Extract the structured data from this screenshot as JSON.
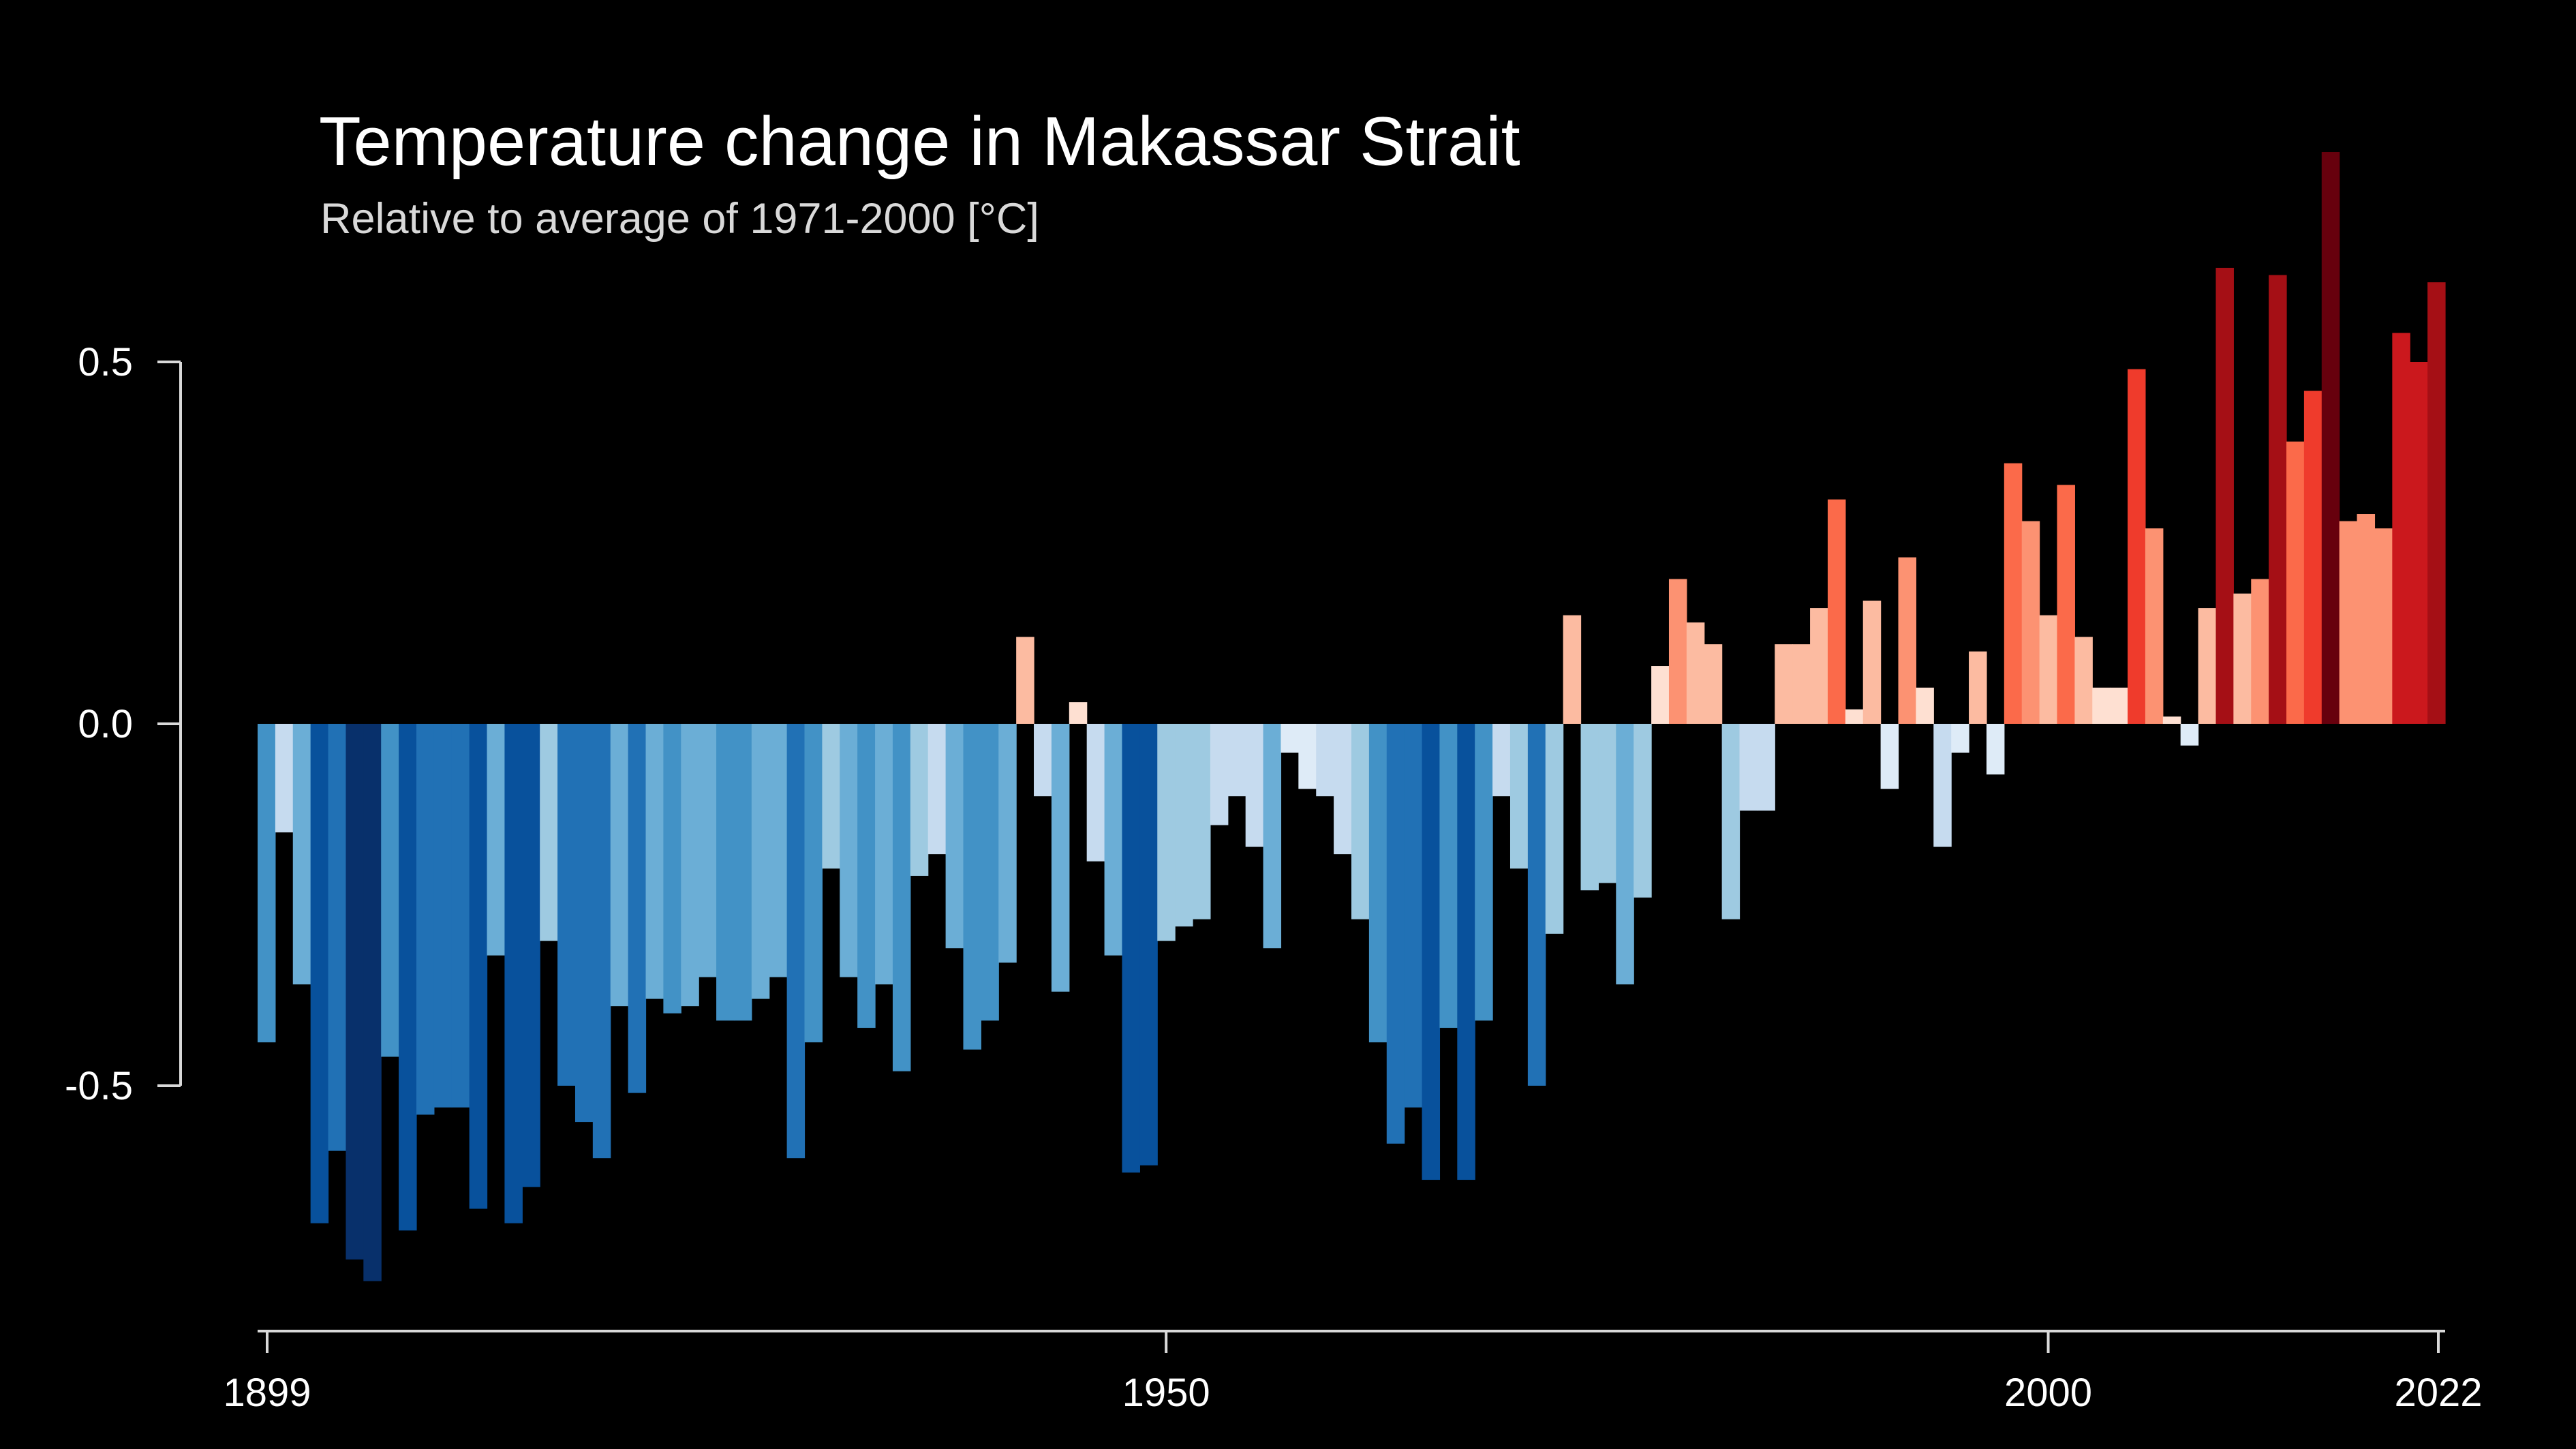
{
  "chart_data": {
    "type": "bar",
    "title": "Temperature change in Makassar Strait",
    "subtitle": "Relative to average of 1971-2000  [°C]",
    "xlabel": "",
    "ylabel": "",
    "grid": false,
    "legend": "none",
    "xlim": [
      1899,
      2022
    ],
    "ylim": [
      -0.85,
      0.75
    ],
    "y_ticks": [
      0.5,
      0.0,
      -0.5
    ],
    "y_tick_labels": [
      "0.5",
      "0.0",
      "-0.5"
    ],
    "x_ticks": [
      1899,
      1950,
      2000,
      2022
    ],
    "x_tick_labels": [
      "1899",
      "1950",
      "2000",
      "2022"
    ],
    "color_scale": {
      "negative": [
        "#deebf7",
        "#c6dbef",
        "#9ecae1",
        "#6baed6",
        "#4292c6",
        "#2171b5",
        "#08519c",
        "#08306b"
      ],
      "positive": [
        "#fee0d2",
        "#fcbba1",
        "#fc9272",
        "#fb6a4a",
        "#ef3b2c",
        "#cb181d",
        "#a50f15",
        "#67000d"
      ]
    },
    "years": [
      1899,
      1900,
      1901,
      1902,
      1903,
      1904,
      1905,
      1906,
      1907,
      1908,
      1909,
      1910,
      1911,
      1912,
      1913,
      1914,
      1915,
      1916,
      1917,
      1918,
      1919,
      1920,
      1921,
      1922,
      1923,
      1924,
      1925,
      1926,
      1927,
      1928,
      1929,
      1930,
      1931,
      1932,
      1933,
      1934,
      1935,
      1936,
      1937,
      1938,
      1939,
      1940,
      1941,
      1942,
      1943,
      1944,
      1945,
      1946,
      1947,
      1948,
      1949,
      1950,
      1951,
      1952,
      1953,
      1954,
      1955,
      1956,
      1957,
      1958,
      1959,
      1960,
      1961,
      1962,
      1963,
      1964,
      1965,
      1966,
      1967,
      1968,
      1969,
      1970,
      1971,
      1972,
      1973,
      1974,
      1975,
      1976,
      1977,
      1978,
      1979,
      1980,
      1981,
      1982,
      1983,
      1984,
      1985,
      1986,
      1987,
      1988,
      1989,
      1990,
      1991,
      1992,
      1993,
      1994,
      1995,
      1996,
      1997,
      1998,
      1999,
      2000,
      2001,
      2002,
      2003,
      2004,
      2005,
      2006,
      2007,
      2008,
      2009,
      2010,
      2011,
      2012,
      2013,
      2014,
      2015,
      2016,
      2017,
      2018,
      2019,
      2020,
      2021,
      2022
    ],
    "values": [
      -0.44,
      -0.15,
      -0.36,
      -0.69,
      -0.59,
      -0.74,
      -0.77,
      -0.46,
      -0.7,
      -0.54,
      -0.53,
      -0.53,
      -0.67,
      -0.32,
      -0.69,
      -0.64,
      -0.3,
      -0.5,
      -0.55,
      -0.6,
      -0.39,
      -0.51,
      -0.38,
      -0.4,
      -0.39,
      -0.35,
      -0.41,
      -0.41,
      -0.38,
      -0.35,
      -0.6,
      -0.44,
      -0.2,
      -0.35,
      -0.42,
      -0.36,
      -0.48,
      -0.21,
      -0.18,
      -0.31,
      -0.45,
      -0.41,
      -0.33,
      0.12,
      -0.1,
      -0.37,
      0.03,
      -0.19,
      -0.32,
      -0.62,
      -0.61,
      -0.3,
      -0.28,
      -0.27,
      -0.14,
      -0.1,
      -0.17,
      -0.31,
      -0.04,
      -0.09,
      -0.1,
      -0.18,
      -0.27,
      -0.44,
      -0.58,
      -0.53,
      -0.63,
      -0.42,
      -0.63,
      -0.41,
      -0.1,
      -0.2,
      -0.5,
      -0.29,
      0.15,
      -0.23,
      -0.22,
      -0.36,
      -0.24,
      0.08,
      0.2,
      0.14,
      0.11,
      -0.27,
      -0.12,
      -0.12,
      0.11,
      0.11,
      0.16,
      0.31,
      0.02,
      0.17,
      -0.09,
      0.23,
      0.05,
      -0.17,
      -0.04,
      0.1,
      -0.07,
      0.36,
      0.28,
      0.15,
      0.33,
      0.12,
      0.05,
      0.05,
      0.49,
      0.27,
      0.01,
      -0.03,
      0.16,
      0.63,
      0.18,
      0.2,
      0.62,
      0.39,
      0.46,
      0.79,
      0.28,
      0.29,
      0.27,
      0.54,
      0.5,
      0.61
    ]
  }
}
